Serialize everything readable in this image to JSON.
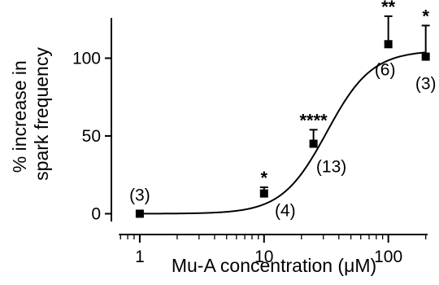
{
  "chart_data": {
    "type": "scatter",
    "title": "",
    "xlabel": "Mu-A concentration (μM)",
    "ylabel_lines": [
      "% increase in",
      "spark frequency"
    ],
    "xscale": "log",
    "xlim": [
      0.6,
      220
    ],
    "ylim": [
      -5,
      128
    ],
    "x_ticks": [
      1,
      10,
      100
    ],
    "x_tick_labels": [
      "1",
      "10",
      "100"
    ],
    "y_ticks": [
      0,
      50,
      100
    ],
    "y_tick_labels": [
      "0",
      "50",
      "100"
    ],
    "grid": false,
    "points": [
      {
        "x": 1,
        "y": 0,
        "err_upper": 0,
        "n_label": "(3)",
        "sig": ""
      },
      {
        "x": 10,
        "y": 13,
        "err_upper": 4,
        "n_label": "(4)",
        "sig": "*"
      },
      {
        "x": 25,
        "y": 45,
        "err_upper": 9,
        "n_label": "(13)",
        "sig": "****"
      },
      {
        "x": 100,
        "y": 109,
        "err_upper": 18,
        "n_label": "(6)",
        "sig": "**"
      },
      {
        "x": 200,
        "y": 101,
        "err_upper": 20,
        "n_label": "(3)",
        "sig": "*"
      }
    ],
    "fit_curve": {
      "type": "hill",
      "bottom": 0,
      "top": 105,
      "ec50": 32,
      "hill_slope": 2.4
    }
  }
}
